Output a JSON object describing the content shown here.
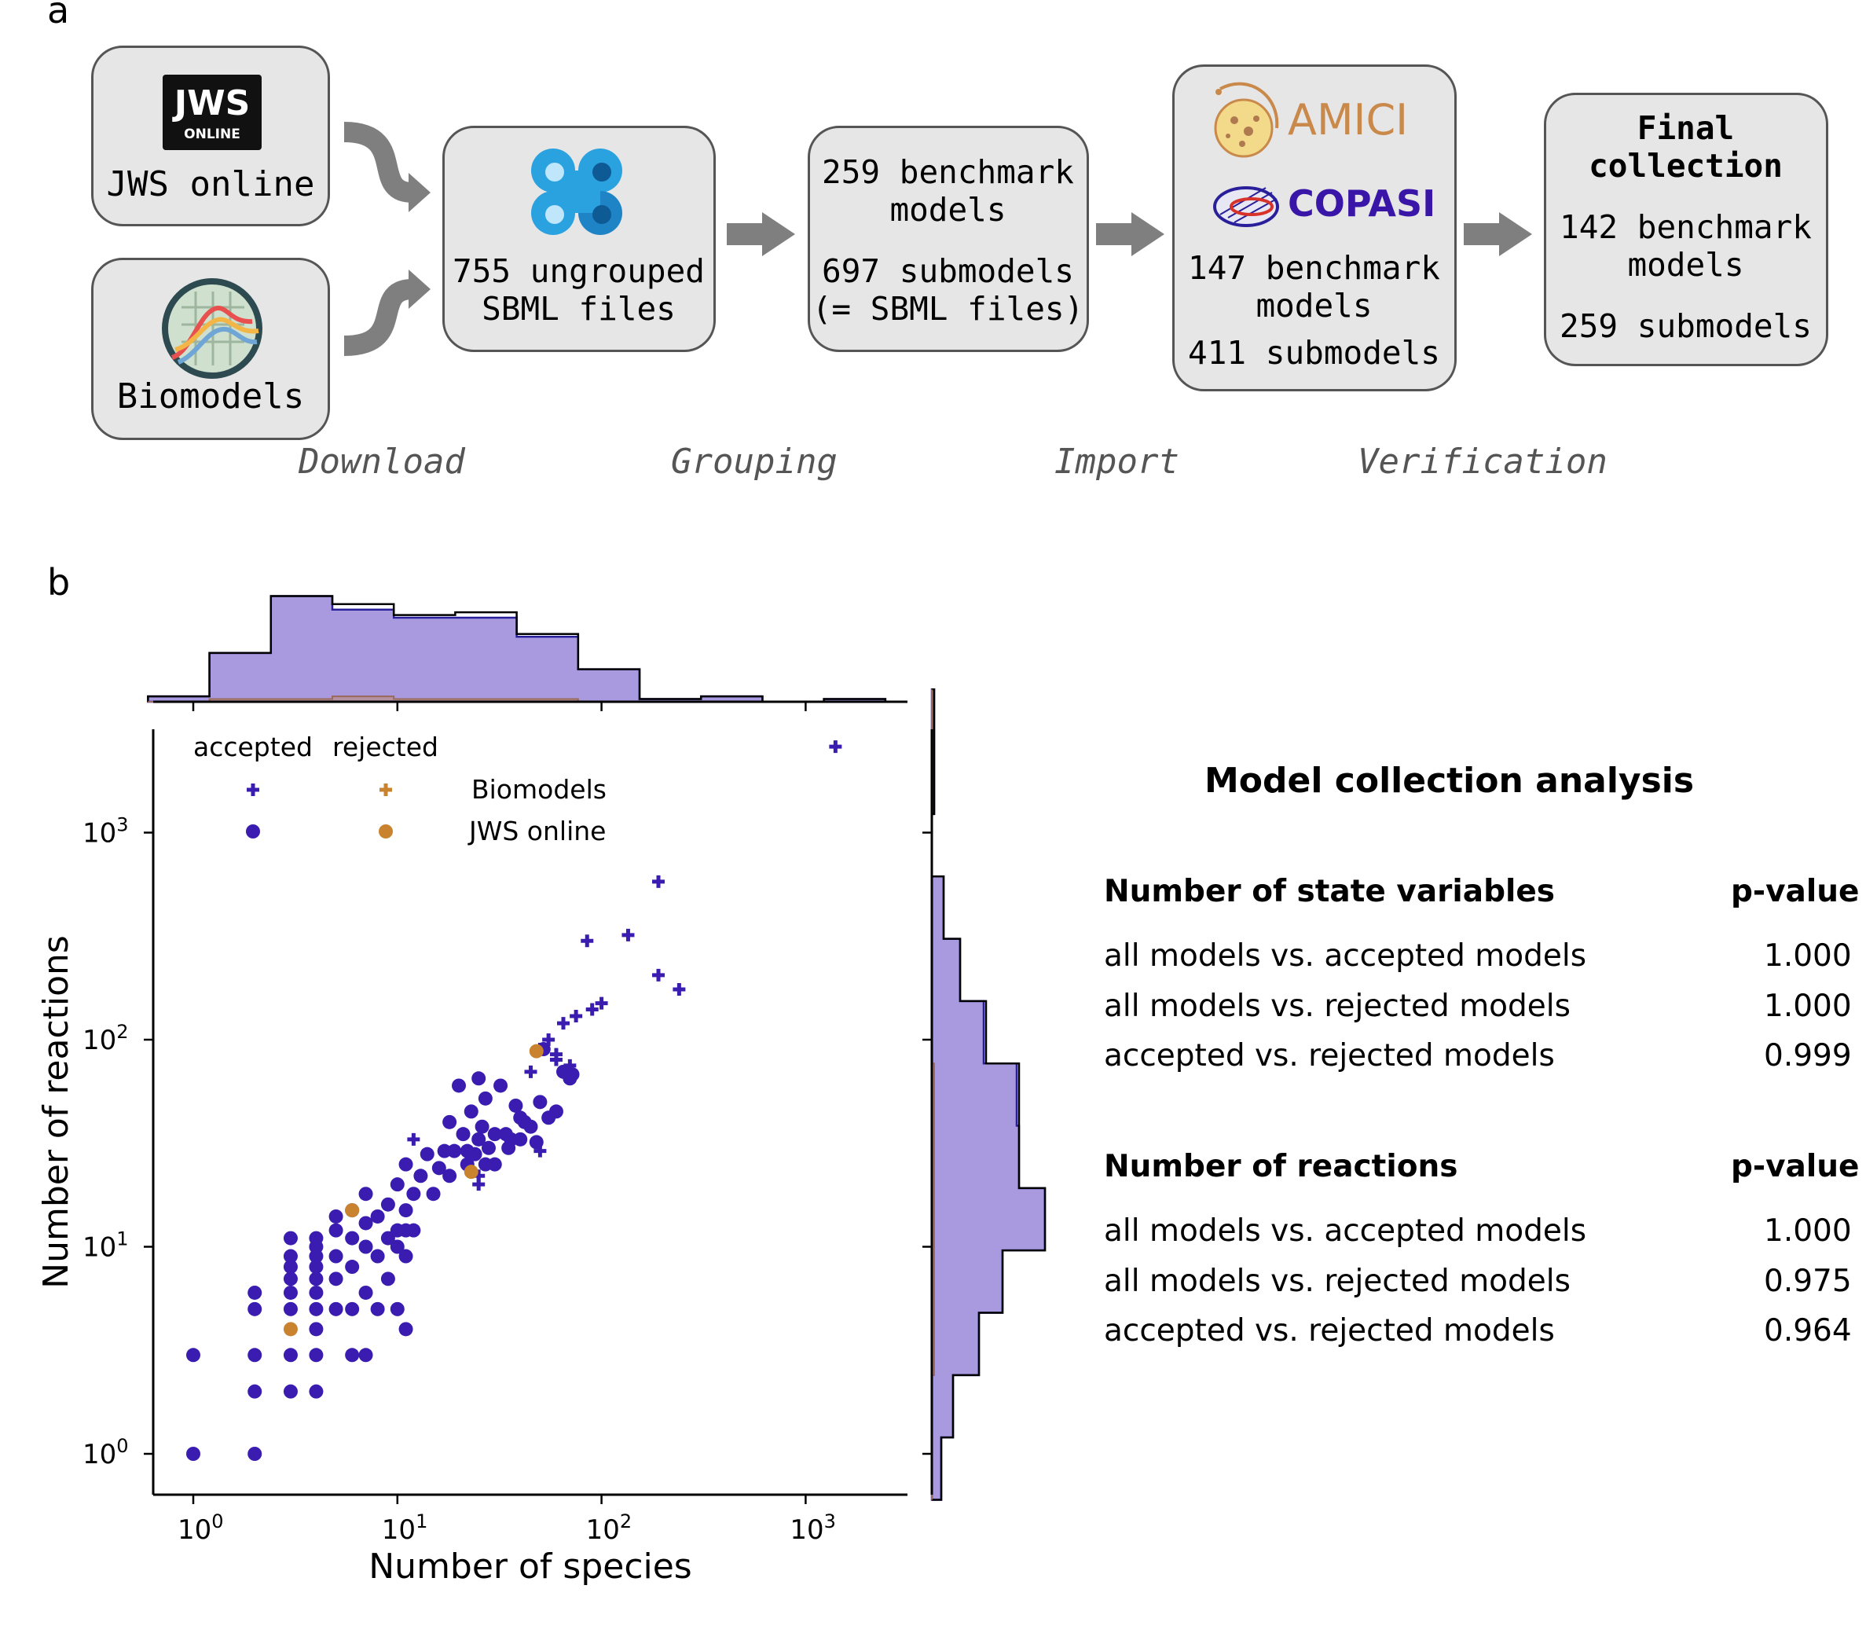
{
  "panel_a": {
    "label": "a",
    "sources": [
      {
        "label": "JWS online",
        "logo_text": "JWS",
        "logo_sub": "ONLINE"
      },
      {
        "label": "Biomodels"
      }
    ],
    "ungrouped_box": {
      "line1": "755 ungrouped",
      "line2": "SBML files"
    },
    "grouped_box": {
      "line1": "259 benchmark",
      "line2": "models",
      "line3": "697 submodels",
      "line4": "(= SBML files)"
    },
    "import_box": {
      "amici_label": "AMICI",
      "copasi_label": "COPASI",
      "line1": "147 benchmark",
      "line2": "models",
      "line3": "411 submodels"
    },
    "final_box": {
      "title1": "Final",
      "title2": "collection",
      "line1": "142 benchmark",
      "line2": "models",
      "line3": "259 submodels"
    },
    "steps": [
      "Download",
      "Grouping",
      "Import",
      "Verification"
    ],
    "colors": {
      "box_fill": "#e6e6e6",
      "box_border": "#555555",
      "arrow": "#7f7f7f",
      "amici": "#c9894a",
      "copasi": "#3a16a8"
    }
  },
  "panel_b": {
    "label": "b",
    "colors": {
      "accepted": "#3a1db0",
      "rejected": "#c9832e",
      "hist_fill": "#a99ae0",
      "hist_edge": "#2a1f9a"
    },
    "legend": {
      "col_accepted": "accepted",
      "col_rejected": "rejected",
      "row_biomodels": "Biomodels",
      "row_jws": "JWS online"
    },
    "stats": {
      "title": "Model collection analysis",
      "sections": [
        {
          "header": "Number of state variables",
          "pheader": "p-value",
          "rows": [
            {
              "label": "all models vs. accepted models",
              "value": "1.000"
            },
            {
              "label": "all models vs. rejected models",
              "value": "1.000"
            },
            {
              "label": "accepted vs. rejected models",
              "value": "0.999"
            }
          ]
        },
        {
          "header": "Number of reactions",
          "pheader": "p-value",
          "rows": [
            {
              "label": "all models vs. accepted models",
              "value": "1.000"
            },
            {
              "label": "all models vs. rejected models",
              "value": "0.975"
            },
            {
              "label": "accepted vs. rejected models",
              "value": "0.964"
            }
          ]
        }
      ]
    }
  },
  "chart_data": {
    "type": "scatter",
    "xlabel": "Number of species",
    "ylabel": "Number of reactions",
    "xscale": "log",
    "yscale": "log",
    "xlim": [
      0.6,
      3000
    ],
    "ylim": [
      0.6,
      3000
    ],
    "xticks": [
      {
        "value": 1,
        "label": "10",
        "exp": "0"
      },
      {
        "value": 10,
        "label": "10",
        "exp": "1"
      },
      {
        "value": 100,
        "label": "10",
        "exp": "2"
      },
      {
        "value": 1000,
        "label": "10",
        "exp": "3"
      }
    ],
    "yticks": [
      {
        "value": 1,
        "label": "10",
        "exp": "0"
      },
      {
        "value": 10,
        "label": "10",
        "exp": "1"
      },
      {
        "value": 100,
        "label": "10",
        "exp": "2"
      },
      {
        "value": 1000,
        "label": "10",
        "exp": "3"
      }
    ],
    "legend_placement": "top-left",
    "series": [
      {
        "name": "Biomodels",
        "status": "accepted",
        "marker": "plus",
        "points": [
          [
            1400,
            2600
          ],
          [
            190,
            580
          ],
          [
            85,
            300
          ],
          [
            135,
            320
          ],
          [
            190,
            205
          ],
          [
            240,
            175
          ],
          [
            100,
            150
          ],
          [
            90,
            140
          ],
          [
            75,
            130
          ],
          [
            65,
            120
          ],
          [
            55,
            100
          ],
          [
            50,
            90
          ],
          [
            60,
            85
          ],
          [
            70,
            75
          ],
          [
            12,
            33
          ],
          [
            50,
            29
          ],
          [
            25,
            20
          ],
          [
            25,
            22
          ],
          [
            60,
            80
          ],
          [
            45,
            70
          ]
        ]
      },
      {
        "name": "JWS online",
        "status": "accepted",
        "marker": "circle",
        "points": [
          [
            1,
            1
          ],
          [
            1,
            3
          ],
          [
            2,
            1
          ],
          [
            2,
            2
          ],
          [
            2,
            3
          ],
          [
            2,
            5
          ],
          [
            2,
            6
          ],
          [
            3,
            2
          ],
          [
            3,
            3
          ],
          [
            3,
            5
          ],
          [
            3,
            6
          ],
          [
            3,
            7
          ],
          [
            3,
            8
          ],
          [
            3,
            9
          ],
          [
            3,
            11
          ],
          [
            4,
            2
          ],
          [
            4,
            3
          ],
          [
            4,
            4
          ],
          [
            4,
            5
          ],
          [
            4,
            6
          ],
          [
            4,
            7
          ],
          [
            4,
            8
          ],
          [
            4,
            9
          ],
          [
            4,
            10
          ],
          [
            4,
            11
          ],
          [
            5,
            5
          ],
          [
            5,
            7
          ],
          [
            5,
            9
          ],
          [
            5,
            12
          ],
          [
            5,
            14
          ],
          [
            6,
            3
          ],
          [
            6,
            5
          ],
          [
            6,
            8
          ],
          [
            6,
            11
          ],
          [
            6,
            15
          ],
          [
            7,
            3
          ],
          [
            7,
            6
          ],
          [
            7,
            10
          ],
          [
            7,
            13
          ],
          [
            7,
            18
          ],
          [
            8,
            5
          ],
          [
            8,
            9
          ],
          [
            8,
            14
          ],
          [
            9,
            7
          ],
          [
            9,
            11
          ],
          [
            9,
            16
          ],
          [
            10,
            5
          ],
          [
            10,
            10
          ],
          [
            10,
            12
          ],
          [
            10,
            20
          ],
          [
            11,
            4
          ],
          [
            11,
            9
          ],
          [
            11,
            12
          ],
          [
            11,
            15
          ],
          [
            11,
            25
          ],
          [
            12,
            12
          ],
          [
            12,
            18
          ],
          [
            13,
            22
          ],
          [
            14,
            28
          ],
          [
            15,
            18
          ],
          [
            16,
            24
          ],
          [
            17,
            29
          ],
          [
            18,
            22
          ],
          [
            18,
            40
          ],
          [
            19,
            29
          ],
          [
            20,
            60
          ],
          [
            21,
            35
          ],
          [
            22,
            29
          ],
          [
            23,
            45
          ],
          [
            24,
            28
          ],
          [
            25,
            65
          ],
          [
            26,
            38
          ],
          [
            27,
            52
          ],
          [
            28,
            30
          ],
          [
            30,
            25
          ],
          [
            32,
            60
          ],
          [
            34,
            35
          ],
          [
            35,
            30
          ],
          [
            36,
            33
          ],
          [
            38,
            48
          ],
          [
            40,
            42
          ],
          [
            42,
            40
          ],
          [
            45,
            38
          ],
          [
            48,
            32
          ],
          [
            50,
            50
          ],
          [
            55,
            42
          ],
          [
            60,
            45
          ],
          [
            65,
            70
          ],
          [
            70,
            65
          ],
          [
            72,
            68
          ],
          [
            30,
            35
          ],
          [
            40,
            33
          ],
          [
            25,
            33
          ],
          [
            22,
            25
          ],
          [
            52,
            90
          ],
          [
            27,
            25
          ]
        ]
      },
      {
        "name": "Biomodels",
        "status": "rejected",
        "marker": "plus",
        "points": []
      },
      {
        "name": "JWS online",
        "status": "rejected",
        "marker": "circle",
        "points": [
          [
            3,
            4
          ],
          [
            6,
            15
          ],
          [
            23,
            23
          ],
          [
            48,
            88
          ]
        ]
      }
    ],
    "x_hist": {
      "bin_edges": [
        0.6,
        1.2,
        2.4,
        4.8,
        9.6,
        19.2,
        38.4,
        76.8,
        153.6,
        307.2,
        614.4,
        1228.8,
        2457.6
      ],
      "all_counts": [
        2,
        18,
        39,
        36,
        32,
        33,
        25,
        12,
        1,
        2,
        0,
        1
      ],
      "accepted_counts": [
        2,
        18,
        39,
        34,
        31,
        31,
        24,
        12,
        1,
        2,
        0,
        1
      ],
      "rejected_counts": [
        0,
        1,
        1,
        2,
        1,
        1,
        1,
        0,
        0,
        0,
        0,
        0
      ]
    },
    "y_hist": {
      "bin_edges": [
        0.6,
        1.2,
        2.4,
        4.8,
        9.6,
        19.2,
        38.4,
        76.8,
        153.6,
        307.2,
        614.4,
        1228.8,
        2457.6,
        4915.2
      ],
      "all_counts": [
        4,
        9,
        20,
        30,
        48,
        37,
        37,
        23,
        12,
        5,
        0,
        1,
        1
      ],
      "accepted_counts": [
        4,
        9,
        20,
        30,
        48,
        37,
        36,
        22,
        12,
        5,
        0,
        1,
        1
      ],
      "rejected_counts": [
        0,
        0,
        1,
        1,
        1,
        1,
        1,
        0,
        0,
        0,
        0,
        0,
        0
      ]
    }
  }
}
